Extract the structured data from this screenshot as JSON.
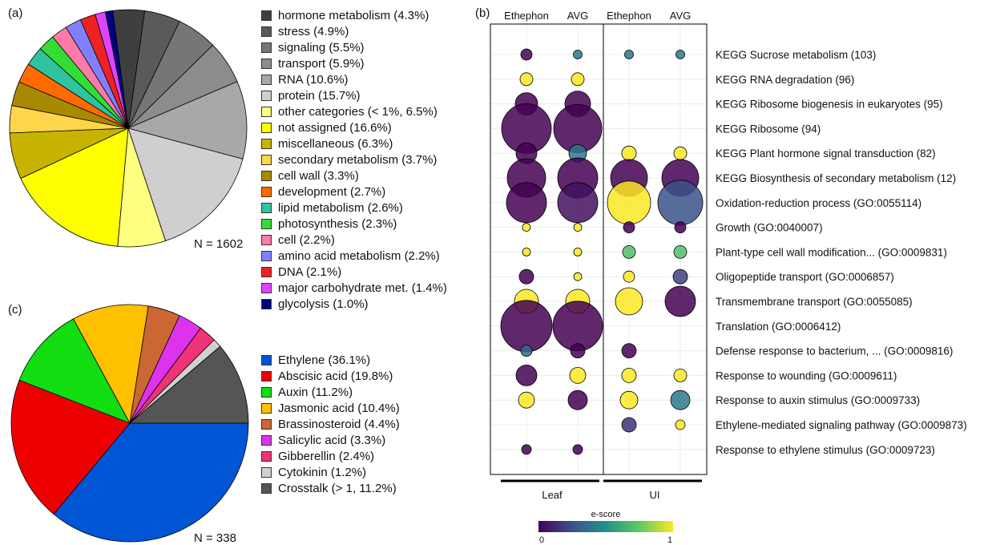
{
  "chart_data": [
    {
      "panel": "(a)",
      "type": "pie",
      "n_label": "N = 1602",
      "slices": [
        {
          "label": "hormone metabolism (4.3%)",
          "value": 4.3,
          "color": "#3f3f3f"
        },
        {
          "label": "stress (4.9%)",
          "value": 4.9,
          "color": "#5a5a5a"
        },
        {
          "label": "signaling (5.5%)",
          "value": 5.5,
          "color": "#767676"
        },
        {
          "label": "transport (5.9%)",
          "value": 5.9,
          "color": "#8c8c8c"
        },
        {
          "label": "RNA (10.6%)",
          "value": 10.6,
          "color": "#a8a8a8"
        },
        {
          "label": "protein (15.7%)",
          "value": 15.7,
          "color": "#cfcfcf"
        },
        {
          "label": "other categories (< 1%, 6.5%)",
          "value": 6.5,
          "color": "#ffff80"
        },
        {
          "label": "not assigned (16.6%)",
          "value": 16.6,
          "color": "#ffff00"
        },
        {
          "label": "miscellaneous (6.3%)",
          "value": 6.3,
          "color": "#c8b400"
        },
        {
          "label": "secondary metabolism (3.7%)",
          "value": 3.7,
          "color": "#ffd54a"
        },
        {
          "label": "cell wall (3.3%)",
          "value": 3.3,
          "color": "#a88a00"
        },
        {
          "label": "development (2.7%)",
          "value": 2.7,
          "color": "#ff6a00"
        },
        {
          "label": "lipid metabolism (2.6%)",
          "value": 2.6,
          "color": "#2ec4a0"
        },
        {
          "label": "photosynthesis (2.3%)",
          "value": 2.3,
          "color": "#33dd33"
        },
        {
          "label": "cell (2.2%)",
          "value": 2.2,
          "color": "#ff7aa8"
        },
        {
          "label": "amino acid metabolism (2.2%)",
          "value": 2.2,
          "color": "#8080ff"
        },
        {
          "label": "DNA (2.1%)",
          "value": 2.1,
          "color": "#ee2222"
        },
        {
          "label": "major carbohydrate met. (1.4%)",
          "value": 1.4,
          "color": "#dd44ff"
        },
        {
          "label": "glycolysis (1.0%)",
          "value": 1.0,
          "color": "#000080"
        }
      ]
    },
    {
      "panel": "(c)",
      "type": "pie",
      "n_label": "N = 338",
      "slices": [
        {
          "label": "Ethylene (36.1%)",
          "value": 36.1,
          "color": "#0055d4"
        },
        {
          "label": "Abscisic acid (19.8%)",
          "value": 19.8,
          "color": "#ee0000"
        },
        {
          "label": "Auxin (11.2%)",
          "value": 11.2,
          "color": "#11dd11"
        },
        {
          "label": "Jasmonic acid (10.4%)",
          "value": 10.4,
          "color": "#ffc000"
        },
        {
          "label": "Brassinosteroid (4.4%)",
          "value": 4.4,
          "color": "#cc6633"
        },
        {
          "label": "Salicylic acid (3.3%)",
          "value": 3.3,
          "color": "#dd33ee"
        },
        {
          "label": "Gibberellin (2.4%)",
          "value": 2.4,
          "color": "#ee3377"
        },
        {
          "label": "Cytokinin (1.2%)",
          "value": 1.2,
          "color": "#d0d0d0"
        },
        {
          "label": "Crosstalk (> 1, 11.2%)",
          "value": 11.2,
          "color": "#555555"
        }
      ]
    },
    {
      "panel": "(b)",
      "type": "scatter",
      "columns": [
        "Ethephon",
        "AVG",
        "Ethephon",
        "AVG"
      ],
      "groups": [
        {
          "label": "Leaf",
          "columns": [
            0,
            1
          ]
        },
        {
          "label": "UI",
          "columns": [
            2,
            3
          ]
        }
      ],
      "colorbar": {
        "title": "e-score",
        "min_label": "0",
        "max_label": "1"
      },
      "rows": [
        "KEGG Sucrose metabolism (103)",
        "KEGG RNA degradation (96)",
        "KEGG Ribosome biogenesis in eukaryotes (95)",
        "KEGG Ribosome (94)",
        "KEGG Plant hormone signal transduction (82)",
        "KEGG Biosynthesis of secondary metabolism (12)",
        "Oxidation-reduction process (GO:0055114)",
        "Growth (GO:0040007)",
        "Plant-type cell wall modification... (GO:0009831)",
        "Oligopeptide transport (GO:0006857)",
        "Transmembrane transport (GO:0055085)",
        "Translation (GO:0006412)",
        "Defense response to bacterium, ... (GO:0009816)",
        "Response to wounding (GO:0009611)",
        "Response to auxin stimulus (GO:0009733)",
        "Ethylene-mediated signaling pathway (GO:0009873)",
        "Response to ethylene stimulus (GO:0009723)"
      ],
      "points": [
        {
          "row": 0,
          "col": 0,
          "size": 7,
          "score": 0.0
        },
        {
          "row": 0,
          "col": 1,
          "size": 5.5,
          "score": 0.4
        },
        {
          "row": 0,
          "col": 2,
          "size": 5.5,
          "score": 0.4
        },
        {
          "row": 0,
          "col": 3,
          "size": 5.5,
          "score": 0.4
        },
        {
          "row": 1,
          "col": 0,
          "size": 8,
          "score": 1.0
        },
        {
          "row": 1,
          "col": 1,
          "size": 8,
          "score": 1.0
        },
        {
          "row": 2,
          "col": 0,
          "size": 14,
          "score": 0.0
        },
        {
          "row": 2,
          "col": 1,
          "size": 16,
          "score": 0.0
        },
        {
          "row": 3,
          "col": 0,
          "size": 31,
          "score": 0.0
        },
        {
          "row": 3,
          "col": 1,
          "size": 30,
          "score": 0.0
        },
        {
          "row": 4,
          "col": 0,
          "size": 13,
          "score": 0.0
        },
        {
          "row": 4,
          "col": 1,
          "size": 11,
          "score": 0.4
        },
        {
          "row": 4,
          "col": 2,
          "size": 9,
          "score": 1.0
        },
        {
          "row": 4,
          "col": 3,
          "size": 8,
          "score": 1.0
        },
        {
          "row": 5,
          "col": 0,
          "size": 24,
          "score": 0.0
        },
        {
          "row": 5,
          "col": 1,
          "size": 25,
          "score": 0.0
        },
        {
          "row": 5,
          "col": 2,
          "size": 23,
          "score": 0.0
        },
        {
          "row": 5,
          "col": 3,
          "size": 23,
          "score": 0.0
        },
        {
          "row": 6,
          "col": 0,
          "size": 25,
          "score": 0.0
        },
        {
          "row": 6,
          "col": 1,
          "size": 25,
          "score": 0.05
        },
        {
          "row": 6,
          "col": 2,
          "size": 27,
          "score": 1.0
        },
        {
          "row": 6,
          "col": 3,
          "size": 28,
          "score": 0.25
        },
        {
          "row": 7,
          "col": 0,
          "size": 5,
          "score": 1.0
        },
        {
          "row": 7,
          "col": 1,
          "size": 5,
          "score": 1.0
        },
        {
          "row": 7,
          "col": 2,
          "size": 7,
          "score": 0.0
        },
        {
          "row": 7,
          "col": 3,
          "size": 7,
          "score": 0.0
        },
        {
          "row": 8,
          "col": 0,
          "size": 5,
          "score": 1.0
        },
        {
          "row": 8,
          "col": 1,
          "size": 5,
          "score": 1.0
        },
        {
          "row": 8,
          "col": 2,
          "size": 8,
          "score": 0.7
        },
        {
          "row": 8,
          "col": 3,
          "size": 8,
          "score": 0.7
        },
        {
          "row": 9,
          "col": 0,
          "size": 9,
          "score": 0.0
        },
        {
          "row": 9,
          "col": 1,
          "size": 5,
          "score": 1.0
        },
        {
          "row": 9,
          "col": 2,
          "size": 7,
          "score": 1.0
        },
        {
          "row": 9,
          "col": 3,
          "size": 9,
          "score": 0.2
        },
        {
          "row": 10,
          "col": 0,
          "size": 15,
          "score": 1.0
        },
        {
          "row": 10,
          "col": 1,
          "size": 15,
          "score": 1.0
        },
        {
          "row": 10,
          "col": 2,
          "size": 17,
          "score": 1.0
        },
        {
          "row": 10,
          "col": 3,
          "size": 19,
          "score": 0.0
        },
        {
          "row": 11,
          "col": 0,
          "size": 32,
          "score": 0.0
        },
        {
          "row": 11,
          "col": 1,
          "size": 31,
          "score": 0.0
        },
        {
          "row": 12,
          "col": 0,
          "size": 7,
          "score": 0.35
        },
        {
          "row": 12,
          "col": 1,
          "size": 9,
          "score": 0.0
        },
        {
          "row": 12,
          "col": 2,
          "size": 9,
          "score": 0.0
        },
        {
          "row": 13,
          "col": 0,
          "size": 13,
          "score": 0.0
        },
        {
          "row": 13,
          "col": 1,
          "size": 10,
          "score": 1.0
        },
        {
          "row": 13,
          "col": 2,
          "size": 9,
          "score": 1.0
        },
        {
          "row": 13,
          "col": 3,
          "size": 8,
          "score": 1.0
        },
        {
          "row": 14,
          "col": 0,
          "size": 10,
          "score": 1.0
        },
        {
          "row": 14,
          "col": 1,
          "size": 12,
          "score": 0.0
        },
        {
          "row": 14,
          "col": 2,
          "size": 11,
          "score": 1.0
        },
        {
          "row": 14,
          "col": 3,
          "size": 12,
          "score": 0.4
        },
        {
          "row": 15,
          "col": 2,
          "size": 9,
          "score": 0.15
        },
        {
          "row": 15,
          "col": 3,
          "size": 6,
          "score": 1.0
        },
        {
          "row": 16,
          "col": 0,
          "size": 6,
          "score": 0.0
        },
        {
          "row": 16,
          "col": 1,
          "size": 6,
          "score": 0.0
        }
      ]
    }
  ]
}
